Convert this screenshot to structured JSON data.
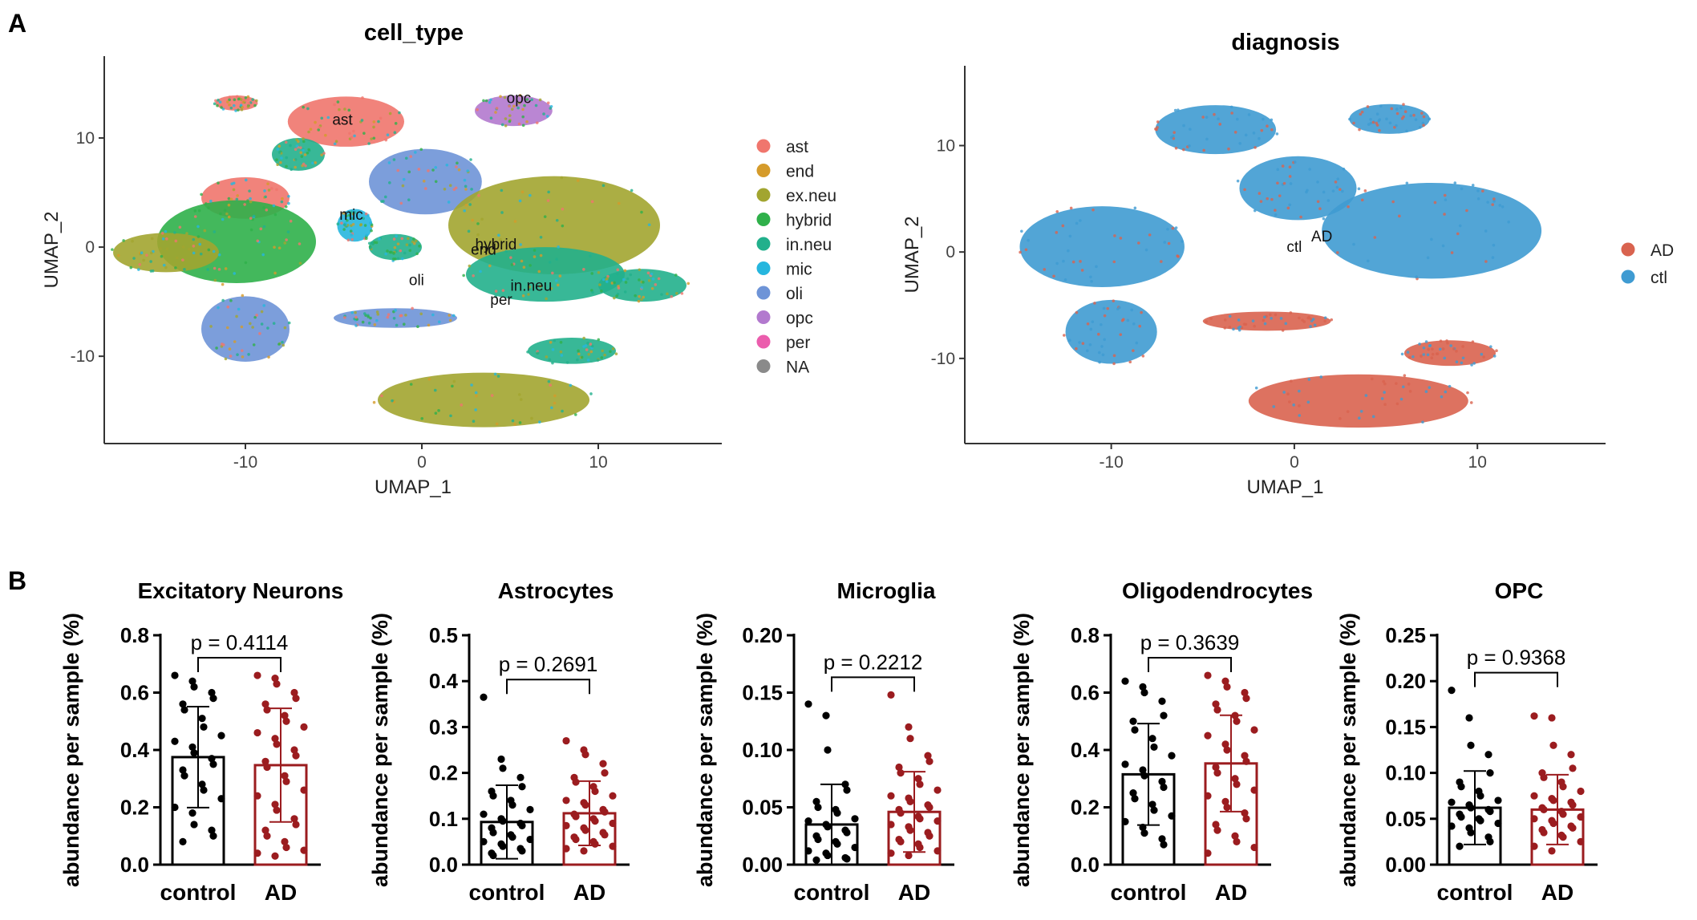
{
  "panels": {
    "a": "A",
    "b": "B"
  },
  "chart_data": [
    {
      "type": "scatter",
      "title": "cell_type",
      "xlabel": "UMAP_1",
      "ylabel": "UMAP_2",
      "xlim": [
        -18,
        17
      ],
      "ylim": [
        -18,
        17.5
      ],
      "xticks": [
        -10,
        0,
        10
      ],
      "yticks": [
        -10,
        0,
        10
      ],
      "tick_labels_x": [
        "-10",
        "0",
        "10"
      ],
      "tick_labels_y": [
        "-10",
        "0",
        "10"
      ],
      "legend": [
        {
          "label": "ast",
          "color": "#F0766D"
        },
        {
          "label": "end",
          "color": "#D59B2B"
        },
        {
          "label": "ex.neu",
          "color": "#A2A530"
        },
        {
          "label": "hybrid",
          "color": "#2FB04A"
        },
        {
          "label": "in.neu",
          "color": "#22B08C"
        },
        {
          "label": "mic",
          "color": "#26B6DE"
        },
        {
          "label": "oli",
          "color": "#6E94D7"
        },
        {
          "label": "opc",
          "color": "#B279CE"
        },
        {
          "label": "per",
          "color": "#EB5DAD"
        },
        {
          "label": "NA",
          "color": "#8A8A8A"
        }
      ],
      "cluster_labels": [
        {
          "text": "ast",
          "x": -4.5,
          "y": 11.2
        },
        {
          "text": "opc",
          "x": 5.5,
          "y": 13.2
        },
        {
          "text": "mic",
          "x": -4.0,
          "y": 2.5
        },
        {
          "text": "oli",
          "x": -0.3,
          "y": -3.5
        },
        {
          "text": "hybrid",
          "x": 4.2,
          "y": -0.2
        },
        {
          "text": "end",
          "x": 3.5,
          "y": -0.7
        },
        {
          "text": "in.neu",
          "x": 6.2,
          "y": -4.0
        },
        {
          "text": "per",
          "x": 4.5,
          "y": -5.3
        }
      ],
      "clusters": [
        {
          "cx": -4.3,
          "cy": 11.5,
          "rx": 3.3,
          "ry": 2.3,
          "color": "#F0766D"
        },
        {
          "cx": -10.5,
          "cy": 13.2,
          "rx": 1.2,
          "ry": 0.7,
          "color": "#F0766D"
        },
        {
          "cx": -10.0,
          "cy": 4.5,
          "rx": 2.5,
          "ry": 1.9,
          "color": "#F0766D"
        },
        {
          "cx": 0.2,
          "cy": 6.0,
          "rx": 3.2,
          "ry": 3.0,
          "color": "#6E94D7"
        },
        {
          "cx": -10.0,
          "cy": -7.5,
          "rx": 2.5,
          "ry": 3.0,
          "color": "#6E94D7"
        },
        {
          "cx": -1.5,
          "cy": -6.5,
          "rx": 3.5,
          "ry": 0.9,
          "color": "#6E94D7"
        },
        {
          "cx": 5.2,
          "cy": 12.5,
          "rx": 2.2,
          "ry": 1.4,
          "color": "#B279CE"
        },
        {
          "cx": -10.5,
          "cy": 0.5,
          "rx": 4.5,
          "ry": 3.8,
          "color": "#2FB04A"
        },
        {
          "cx": -14.5,
          "cy": -0.5,
          "rx": 3.0,
          "ry": 1.8,
          "color": "#A2A530"
        },
        {
          "cx": 7.5,
          "cy": 2.0,
          "rx": 6.0,
          "ry": 4.5,
          "color": "#A2A530"
        },
        {
          "cx": 7.0,
          "cy": -2.5,
          "rx": 4.5,
          "ry": 2.5,
          "color": "#22B08C"
        },
        {
          "cx": 3.5,
          "cy": -14.0,
          "rx": 6.0,
          "ry": 2.5,
          "color": "#A2A530"
        },
        {
          "cx": 8.5,
          "cy": -9.5,
          "rx": 2.5,
          "ry": 1.2,
          "color": "#22B08C"
        },
        {
          "cx": 12.5,
          "cy": -3.5,
          "rx": 2.5,
          "ry": 1.5,
          "color": "#22B08C"
        },
        {
          "cx": -3.8,
          "cy": 2.0,
          "rx": 1.0,
          "ry": 1.5,
          "color": "#26B6DE"
        },
        {
          "cx": -1.5,
          "cy": 0.0,
          "rx": 1.5,
          "ry": 1.2,
          "color": "#22B08C"
        },
        {
          "cx": -7.0,
          "cy": 8.5,
          "rx": 1.5,
          "ry": 1.5,
          "color": "#22B08C"
        }
      ]
    },
    {
      "type": "scatter",
      "title": "diagnosis",
      "xlabel": "UMAP_1",
      "ylabel": "UMAP_2",
      "xlim": [
        -18,
        17
      ],
      "ylim": [
        -18,
        17.5
      ],
      "xticks": [
        -10,
        0,
        10
      ],
      "yticks": [
        -10,
        0,
        10
      ],
      "tick_labels_x": [
        "-10",
        "0",
        "10"
      ],
      "tick_labels_y": [
        "-10",
        "0",
        "10"
      ],
      "legend": [
        {
          "label": "AD",
          "color": "#D9634F"
        },
        {
          "label": "ctl",
          "color": "#3F9BD2"
        }
      ],
      "cluster_labels": [
        {
          "text": "AD",
          "x": 1.5,
          "y": 1.0
        },
        {
          "text": "ctl",
          "x": 0.0,
          "y": 0.0
        }
      ],
      "clusters": [
        {
          "cx": -4.3,
          "cy": 11.5,
          "rx": 3.3,
          "ry": 2.3,
          "color": "#3F9BD2"
        },
        {
          "cx": 0.2,
          "cy": 6.0,
          "rx": 3.2,
          "ry": 3.0,
          "color": "#3F9BD2"
        },
        {
          "cx": -10.0,
          "cy": -7.5,
          "rx": 2.5,
          "ry": 3.0,
          "color": "#3F9BD2"
        },
        {
          "cx": -10.5,
          "cy": 0.5,
          "rx": 4.5,
          "ry": 3.8,
          "color": "#3F9BD2"
        },
        {
          "cx": 7.5,
          "cy": 2.0,
          "rx": 6.0,
          "ry": 4.5,
          "color": "#3F9BD2"
        },
        {
          "cx": 3.5,
          "cy": -14.0,
          "rx": 6.0,
          "ry": 2.5,
          "color": "#D9634F"
        },
        {
          "cx": -1.5,
          "cy": -6.5,
          "rx": 3.5,
          "ry": 0.9,
          "color": "#D9634F"
        },
        {
          "cx": 8.5,
          "cy": -9.5,
          "rx": 2.5,
          "ry": 1.2,
          "color": "#D9634F"
        },
        {
          "cx": 5.2,
          "cy": 12.5,
          "rx": 2.2,
          "ry": 1.4,
          "color": "#3F9BD2"
        }
      ]
    },
    {
      "type": "bar",
      "title": "Excitatory Neurons",
      "ylabel": "abundance per sample (%)",
      "categories": [
        "control",
        "AD"
      ],
      "values": [
        0.375,
        0.347
      ],
      "error": [
        0.176,
        0.198
      ],
      "ylim": [
        0,
        0.8
      ],
      "yticks": [
        0,
        0.2,
        0.4,
        0.6,
        0.8
      ],
      "ytick_labels": [
        "0.0",
        "0.2",
        "0.4",
        "0.6",
        "0.8"
      ],
      "p_value": "p = 0.4114",
      "colors": [
        "#000000",
        "#9B1C1F"
      ],
      "points": [
        [
          0.66,
          0.64,
          0.62,
          0.6,
          0.58,
          0.56,
          0.54,
          0.51,
          0.48,
          0.45,
          0.43,
          0.41,
          0.39,
          0.37,
          0.35,
          0.33,
          0.31,
          0.28,
          0.26,
          0.23,
          0.2,
          0.18,
          0.14,
          0.12,
          0.1,
          0.08
        ],
        [
          0.66,
          0.65,
          0.63,
          0.6,
          0.58,
          0.56,
          0.54,
          0.52,
          0.5,
          0.48,
          0.46,
          0.44,
          0.42,
          0.4,
          0.38,
          0.36,
          0.34,
          0.31,
          0.29,
          0.26,
          0.24,
          0.21,
          0.19,
          0.16,
          0.14,
          0.12,
          0.1,
          0.08,
          0.06,
          0.05,
          0.04,
          0.03
        ]
      ]
    },
    {
      "type": "bar",
      "title": "Astrocytes",
      "ylabel": "abundance per sample (%)",
      "categories": [
        "control",
        "AD"
      ],
      "values": [
        0.093,
        0.112
      ],
      "error": [
        0.08,
        0.07
      ],
      "ylim": [
        0,
        0.5
      ],
      "yticks": [
        0,
        0.1,
        0.2,
        0.3,
        0.4,
        0.5
      ],
      "ytick_labels": [
        "0.0",
        "0.1",
        "0.2",
        "0.3",
        "0.4",
        "0.5"
      ],
      "p_value": "p = 0.2691",
      "colors": [
        "#000000",
        "#9B1C1F"
      ],
      "points": [
        [
          0.365,
          0.23,
          0.21,
          0.19,
          0.17,
          0.16,
          0.15,
          0.14,
          0.13,
          0.12,
          0.11,
          0.1,
          0.095,
          0.09,
          0.085,
          0.08,
          0.07,
          0.065,
          0.06,
          0.055,
          0.05,
          0.045,
          0.04,
          0.035,
          0.03,
          0.025,
          0.02
        ],
        [
          0.27,
          0.25,
          0.24,
          0.22,
          0.2,
          0.19,
          0.18,
          0.17,
          0.16,
          0.15,
          0.14,
          0.135,
          0.13,
          0.12,
          0.115,
          0.11,
          0.105,
          0.1,
          0.095,
          0.09,
          0.085,
          0.08,
          0.075,
          0.07,
          0.065,
          0.06,
          0.055,
          0.05,
          0.045,
          0.04,
          0.035,
          0.03
        ]
      ]
    },
    {
      "type": "bar",
      "title": "Microglia",
      "ylabel": "abundance per sample (%)",
      "categories": [
        "control",
        "AD"
      ],
      "values": [
        0.035,
        0.046
      ],
      "error": [
        0.035,
        0.035
      ],
      "ylim": [
        0,
        0.2
      ],
      "yticks": [
        0,
        0.05,
        0.1,
        0.15,
        0.2
      ],
      "ytick_labels": [
        "0.00",
        "0.05",
        "0.10",
        "0.15",
        "0.20"
      ],
      "p_value": "p = 0.2212",
      "colors": [
        "#000000",
        "#9B1C1F"
      ],
      "points": [
        [
          0.14,
          0.13,
          0.1,
          0.07,
          0.065,
          0.055,
          0.05,
          0.048,
          0.045,
          0.04,
          0.038,
          0.035,
          0.033,
          0.03,
          0.028,
          0.025,
          0.022,
          0.02,
          0.018,
          0.015,
          0.012,
          0.01,
          0.008,
          0.006,
          0.005,
          0.004
        ],
        [
          0.148,
          0.12,
          0.11,
          0.095,
          0.09,
          0.085,
          0.08,
          0.075,
          0.07,
          0.065,
          0.06,
          0.058,
          0.055,
          0.052,
          0.05,
          0.048,
          0.045,
          0.042,
          0.04,
          0.038,
          0.035,
          0.033,
          0.03,
          0.028,
          0.025,
          0.022,
          0.02,
          0.018,
          0.015,
          0.012,
          0.01,
          0.008
        ]
      ]
    },
    {
      "type": "bar",
      "title": "Oligodendrocytes",
      "ylabel": "abundance per sample (%)",
      "categories": [
        "control",
        "AD"
      ],
      "values": [
        0.315,
        0.353
      ],
      "error": [
        0.177,
        0.168
      ],
      "ylim": [
        0,
        0.8
      ],
      "yticks": [
        0,
        0.2,
        0.4,
        0.6,
        0.8
      ],
      "ytick_labels": [
        "0.0",
        "0.2",
        "0.4",
        "0.6",
        "0.8"
      ],
      "p_value": "p = 0.3639",
      "colors": [
        "#000000",
        "#9B1C1F"
      ],
      "points": [
        [
          0.64,
          0.62,
          0.6,
          0.57,
          0.52,
          0.5,
          0.47,
          0.44,
          0.41,
          0.38,
          0.35,
          0.33,
          0.31,
          0.29,
          0.27,
          0.25,
          0.23,
          0.21,
          0.19,
          0.17,
          0.15,
          0.13,
          0.11,
          0.09,
          0.07
        ],
        [
          0.66,
          0.64,
          0.62,
          0.6,
          0.58,
          0.56,
          0.54,
          0.52,
          0.5,
          0.47,
          0.45,
          0.42,
          0.4,
          0.38,
          0.36,
          0.34,
          0.32,
          0.3,
          0.28,
          0.26,
          0.24,
          0.22,
          0.2,
          0.18,
          0.16,
          0.14,
          0.12,
          0.1,
          0.08,
          0.06,
          0.04
        ]
      ]
    },
    {
      "type": "bar",
      "title": "OPC",
      "ylabel": "abundance per sample (%)",
      "categories": [
        "control",
        "AD"
      ],
      "values": [
        0.062,
        0.06
      ],
      "error": [
        0.04,
        0.038
      ],
      "ylim": [
        0,
        0.25
      ],
      "yticks": [
        0,
        0.05,
        0.1,
        0.15,
        0.2,
        0.25
      ],
      "ytick_labels": [
        "0.00",
        "0.05",
        "0.10",
        "0.15",
        "0.20",
        "0.25"
      ],
      "p_value": "p = 0.9368",
      "colors": [
        "#000000",
        "#9B1C1F"
      ],
      "points": [
        [
          0.19,
          0.16,
          0.13,
          0.12,
          0.1,
          0.09,
          0.085,
          0.08,
          0.075,
          0.07,
          0.068,
          0.065,
          0.062,
          0.06,
          0.058,
          0.055,
          0.052,
          0.05,
          0.048,
          0.045,
          0.042,
          0.04,
          0.035,
          0.03,
          0.025,
          0.02
        ],
        [
          0.162,
          0.16,
          0.13,
          0.12,
          0.105,
          0.1,
          0.095,
          0.09,
          0.085,
          0.08,
          0.075,
          0.072,
          0.07,
          0.068,
          0.065,
          0.062,
          0.06,
          0.058,
          0.055,
          0.052,
          0.05,
          0.048,
          0.045,
          0.042,
          0.04,
          0.038,
          0.035,
          0.032,
          0.03,
          0.025,
          0.02,
          0.015
        ]
      ]
    }
  ]
}
